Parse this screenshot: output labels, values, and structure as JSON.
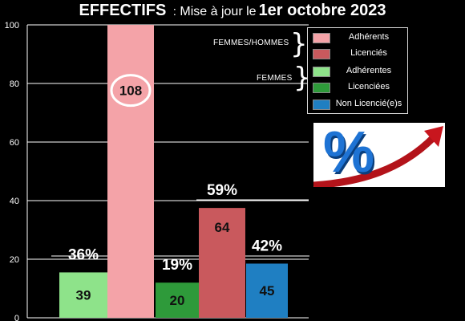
{
  "header": {
    "title_main": "EFFECTIFS",
    "title_sep": ":",
    "title_sub": "Mise à jour le",
    "title_date": "1er octobre 2023"
  },
  "legend": {
    "groups": [
      {
        "label": "FEMMES/HOMMES"
      },
      {
        "label": "FEMMES"
      }
    ],
    "items": [
      {
        "label": "Adhérents",
        "color": "#f4a3a8"
      },
      {
        "label": "Licenciés",
        "color": "#c9595d"
      },
      {
        "label": "Adhérentes",
        "color": "#8ee38a"
      },
      {
        "label": "Licenciées",
        "color": "#2e9a3a"
      },
      {
        "label": "Non Licencié(e)s",
        "color": "#1f7fc2"
      }
    ]
  },
  "badge": {
    "symbol": "%",
    "icon": "percent-growth-arrow-icon"
  },
  "chart_data": {
    "type": "bar",
    "ylim": [
      0,
      100
    ],
    "yticks": [
      0,
      20,
      40,
      60,
      80,
      100
    ],
    "grid": true,
    "legend_position": "top-right",
    "bars": [
      {
        "series": "Adhérentes",
        "value": 39,
        "height_on_scale": 15.5,
        "label": "39",
        "pct": "36%",
        "color": "#8ee38a"
      },
      {
        "series": "Adhérents",
        "value": 108,
        "height_on_scale": 100,
        "label": "108",
        "pct": "",
        "color": "#f4a3a8"
      },
      {
        "series": "Licenciées",
        "value": 20,
        "height_on_scale": 12,
        "label": "20",
        "pct": "19%",
        "color": "#2e9a3a"
      },
      {
        "series": "Licenciés",
        "value": 64,
        "height_on_scale": 37.5,
        "label": "64",
        "pct": "59%",
        "color": "#c9595d"
      },
      {
        "series": "Non Licencié(e)s",
        "value": 45,
        "height_on_scale": 18.5,
        "label": "45",
        "pct": "42%",
        "color": "#1f7fc2"
      }
    ]
  }
}
